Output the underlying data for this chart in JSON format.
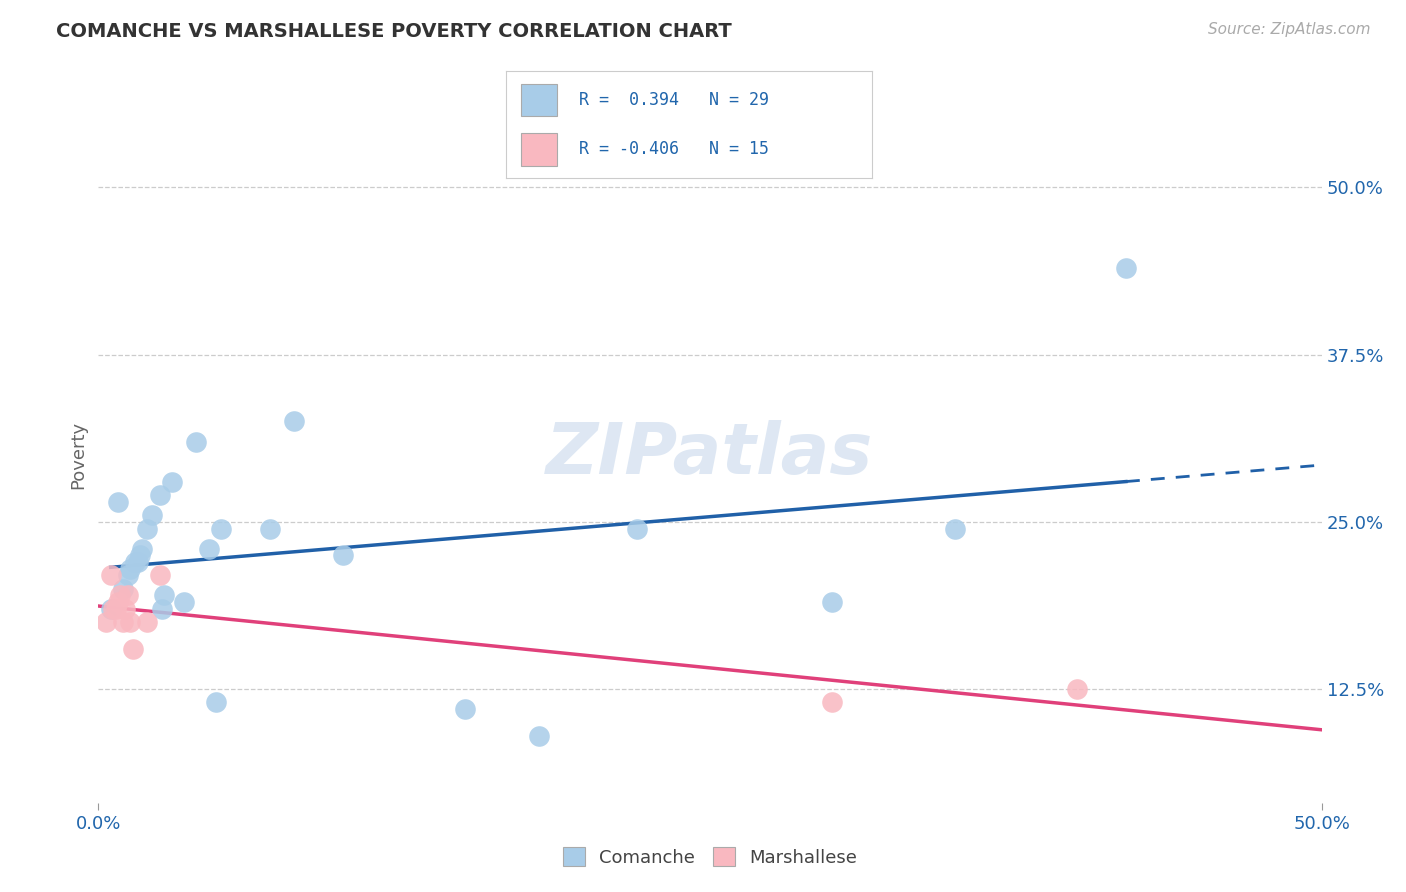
{
  "title": "COMANCHE VS MARSHALLESE POVERTY CORRELATION CHART",
  "source_text": "Source: ZipAtlas.com",
  "ylabel": "Poverty",
  "x_tick_labels": [
    "0.0%",
    "50.0%"
  ],
  "x_tick_values": [
    0.0,
    0.5
  ],
  "y_tick_labels_right": [
    "12.5%",
    "25.0%",
    "37.5%",
    "50.0%"
  ],
  "y_tick_values_right": [
    0.125,
    0.25,
    0.375,
    0.5
  ],
  "xlim": [
    0.0,
    0.5
  ],
  "ylim": [
    0.04,
    0.56
  ],
  "comanche_color": "#a8cce8",
  "marshallese_color": "#f9b8c0",
  "comanche_line_color": "#2060a8",
  "marshallese_line_color": "#e0407a",
  "watermark": "ZIPatlas",
  "comanche_x": [
    0.005,
    0.008,
    0.01,
    0.012,
    0.013,
    0.015,
    0.016,
    0.017,
    0.018,
    0.02,
    0.022,
    0.025,
    0.026,
    0.027,
    0.03,
    0.035,
    0.04,
    0.045,
    0.048,
    0.05,
    0.07,
    0.08,
    0.1,
    0.15,
    0.18,
    0.22,
    0.3,
    0.35,
    0.42
  ],
  "comanche_y": [
    0.185,
    0.265,
    0.2,
    0.21,
    0.215,
    0.22,
    0.22,
    0.225,
    0.23,
    0.245,
    0.255,
    0.27,
    0.185,
    0.195,
    0.28,
    0.19,
    0.31,
    0.23,
    0.115,
    0.245,
    0.245,
    0.325,
    0.225,
    0.11,
    0.09,
    0.245,
    0.19,
    0.245,
    0.44
  ],
  "marshallese_x": [
    0.003,
    0.005,
    0.006,
    0.007,
    0.008,
    0.009,
    0.01,
    0.011,
    0.012,
    0.013,
    0.014,
    0.02,
    0.025,
    0.3,
    0.4
  ],
  "marshallese_y": [
    0.175,
    0.21,
    0.185,
    0.185,
    0.19,
    0.195,
    0.175,
    0.185,
    0.195,
    0.175,
    0.155,
    0.175,
    0.21,
    0.115,
    0.125
  ],
  "background_color": "#ffffff",
  "grid_color": "#cccccc",
  "legend_r1_text": "R =  0.394   N = 29",
  "legend_r2_text": "R = -0.406   N = 15"
}
